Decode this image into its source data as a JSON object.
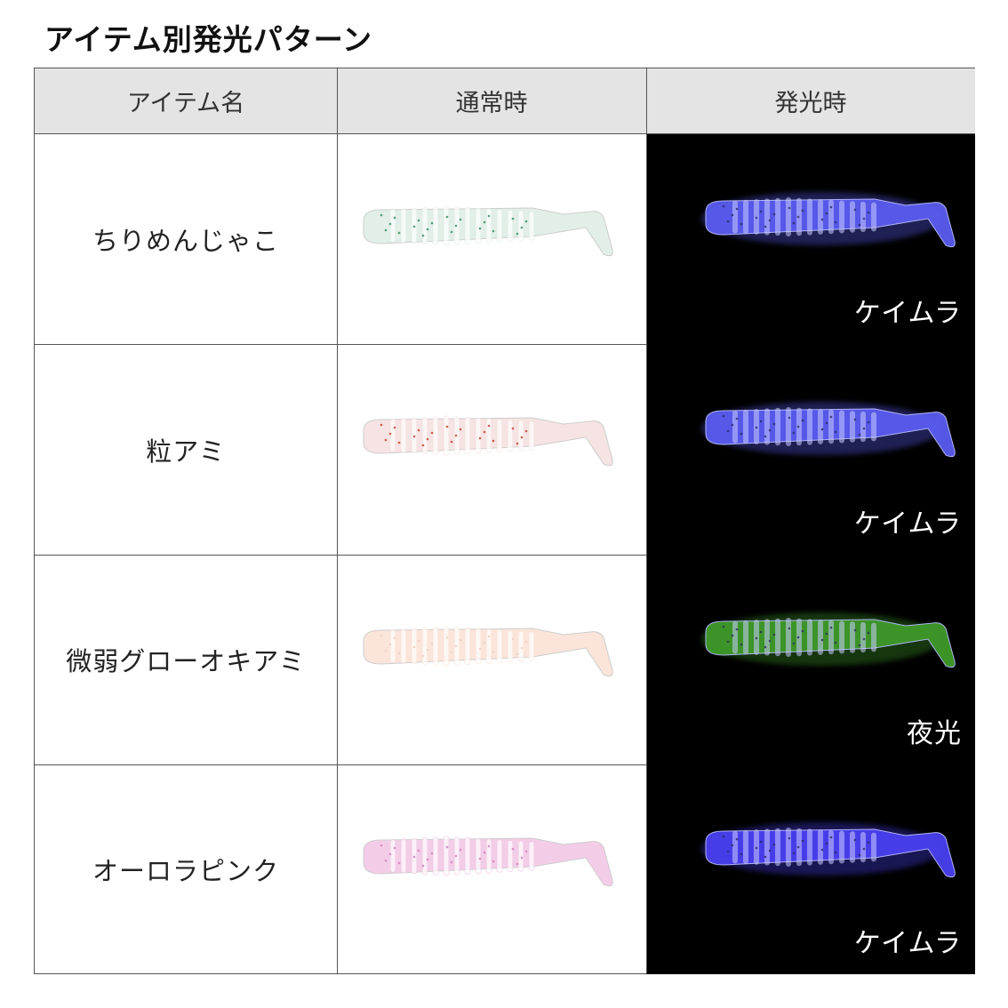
{
  "title": "アイテム別発光パターン",
  "table": {
    "headers": [
      "アイテム名",
      "通常時",
      "発光時"
    ],
    "rows": [
      {
        "name": "ちりめんじゃこ",
        "normal_color": "#dfeee6",
        "normal_fleck": "#2e8a5a",
        "glow_color": "#5a5cf0",
        "glow_label": "ケイムラ"
      },
      {
        "name": "粒アミ",
        "normal_color": "#f6e0e0",
        "normal_fleck": "#c23a2a",
        "glow_color": "#5a5cf0",
        "glow_label": "ケイムラ"
      },
      {
        "name": "微弱グローオキアミ",
        "normal_color": "#fbe3d6",
        "normal_fleck": "#f0cdbb",
        "glow_color": "#3f9a2a",
        "glow_label": "夜光"
      },
      {
        "name": "オーロラピンク",
        "normal_color": "#f2c8e6",
        "normal_fleck": "#d27ab8",
        "glow_color": "#4a40f0",
        "glow_label": "ケイムラ"
      }
    ]
  }
}
